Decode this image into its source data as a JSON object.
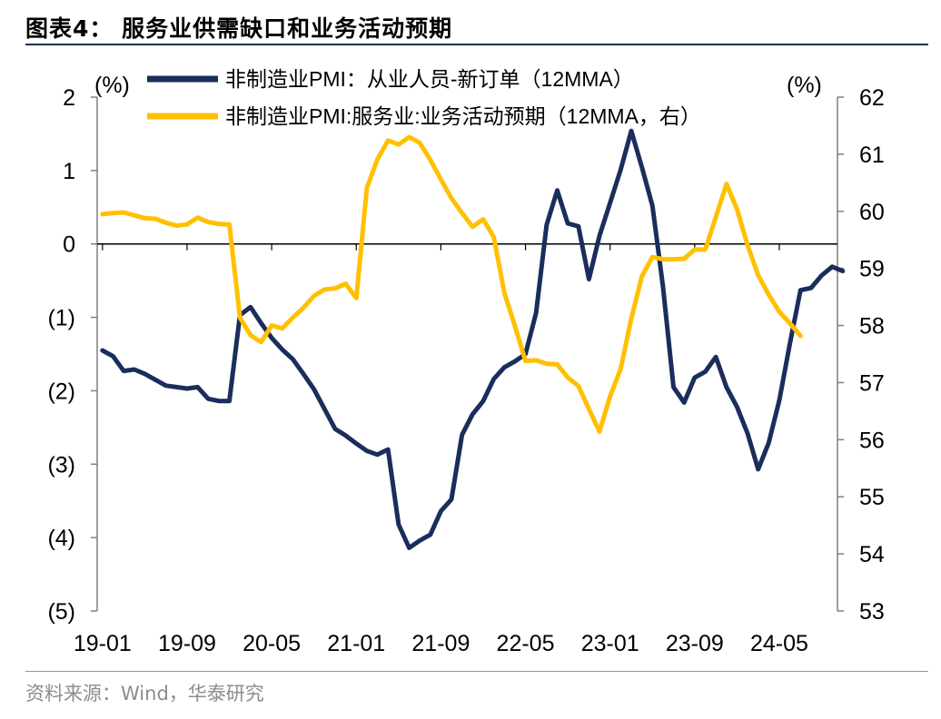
{
  "header": {
    "title": "图表4：  服务业供需缺口和业务活动预期"
  },
  "footer": {
    "source": "资料来源：Wind，华泰研究"
  },
  "colors": {
    "series1": "#1b2d5c",
    "series2": "#ffc000",
    "axis": "#7f7f7f",
    "rule": "#1b2d52"
  },
  "chart_data": {
    "type": "line",
    "left_unit": "(%)",
    "right_unit": "(%)",
    "y_left": {
      "ylim": [
        -5,
        2
      ],
      "ticks": [
        "(5)",
        "(4)",
        "(3)",
        "(2)",
        "(1)",
        "0",
        "1",
        "2"
      ]
    },
    "y_right": {
      "ylim": [
        53,
        62
      ],
      "ticks": [
        "53",
        "54",
        "55",
        "56",
        "57",
        "58",
        "59",
        "60",
        "61",
        "62"
      ]
    },
    "x_ticks": [
      "19-01",
      "19-09",
      "20-05",
      "21-01",
      "21-09",
      "22-05",
      "23-01",
      "23-09",
      "24-05"
    ],
    "legend_position": "top-center",
    "grid": false,
    "series": [
      {
        "name": "非制造业PMI：从业人员-新订单（12MMA）",
        "axis": "left",
        "color": "#1b2d5c",
        "start": "19-01",
        "values": [
          -1.45,
          -1.53,
          -1.73,
          -1.71,
          -1.77,
          -1.85,
          -1.93,
          -1.95,
          -1.97,
          -1.95,
          -2.11,
          -2.14,
          -2.14,
          -0.97,
          -0.86,
          -1.08,
          -1.28,
          -1.44,
          -1.57,
          -1.77,
          -1.98,
          -2.25,
          -2.52,
          -2.61,
          -2.72,
          -2.82,
          -2.87,
          -2.8,
          -3.82,
          -4.14,
          -4.04,
          -3.96,
          -3.64,
          -3.48,
          -2.6,
          -2.32,
          -2.14,
          -1.84,
          -1.68,
          -1.6,
          -1.5,
          -0.94,
          0.26,
          0.73,
          0.28,
          0.24,
          -0.48,
          0.11,
          0.56,
          1.01,
          1.54,
          1.05,
          0.52,
          -0.58,
          -1.95,
          -2.16,
          -1.82,
          -1.74,
          -1.54,
          -1.95,
          -2.22,
          -2.58,
          -3.07,
          -2.71,
          -2.13,
          -1.36,
          -0.63,
          -0.6,
          -0.43,
          -0.31,
          -0.37
        ]
      },
      {
        "name": "非制造业PMI:服务业:业务活动预期（12MMA，右）",
        "axis": "right",
        "color": "#ffc000",
        "start": "19-01",
        "values": [
          59.95,
          59.97,
          59.98,
          59.93,
          59.88,
          59.87,
          59.8,
          59.75,
          59.77,
          59.89,
          59.81,
          59.78,
          59.77,
          58.14,
          57.83,
          57.71,
          58.0,
          57.95,
          58.14,
          58.31,
          58.52,
          58.63,
          58.65,
          58.73,
          58.48,
          60.41,
          60.91,
          61.24,
          61.17,
          61.3,
          61.2,
          60.9,
          60.56,
          60.23,
          59.97,
          59.73,
          59.86,
          59.55,
          58.57,
          57.99,
          57.38,
          57.39,
          57.33,
          57.32,
          57.09,
          56.94,
          56.54,
          56.14,
          56.76,
          57.24,
          58.12,
          58.86,
          59.2,
          59.16,
          59.16,
          59.17,
          59.33,
          59.33,
          59.9,
          60.48,
          60.04,
          59.41,
          58.88,
          58.54,
          58.24,
          58.04,
          57.82
        ]
      }
    ]
  }
}
